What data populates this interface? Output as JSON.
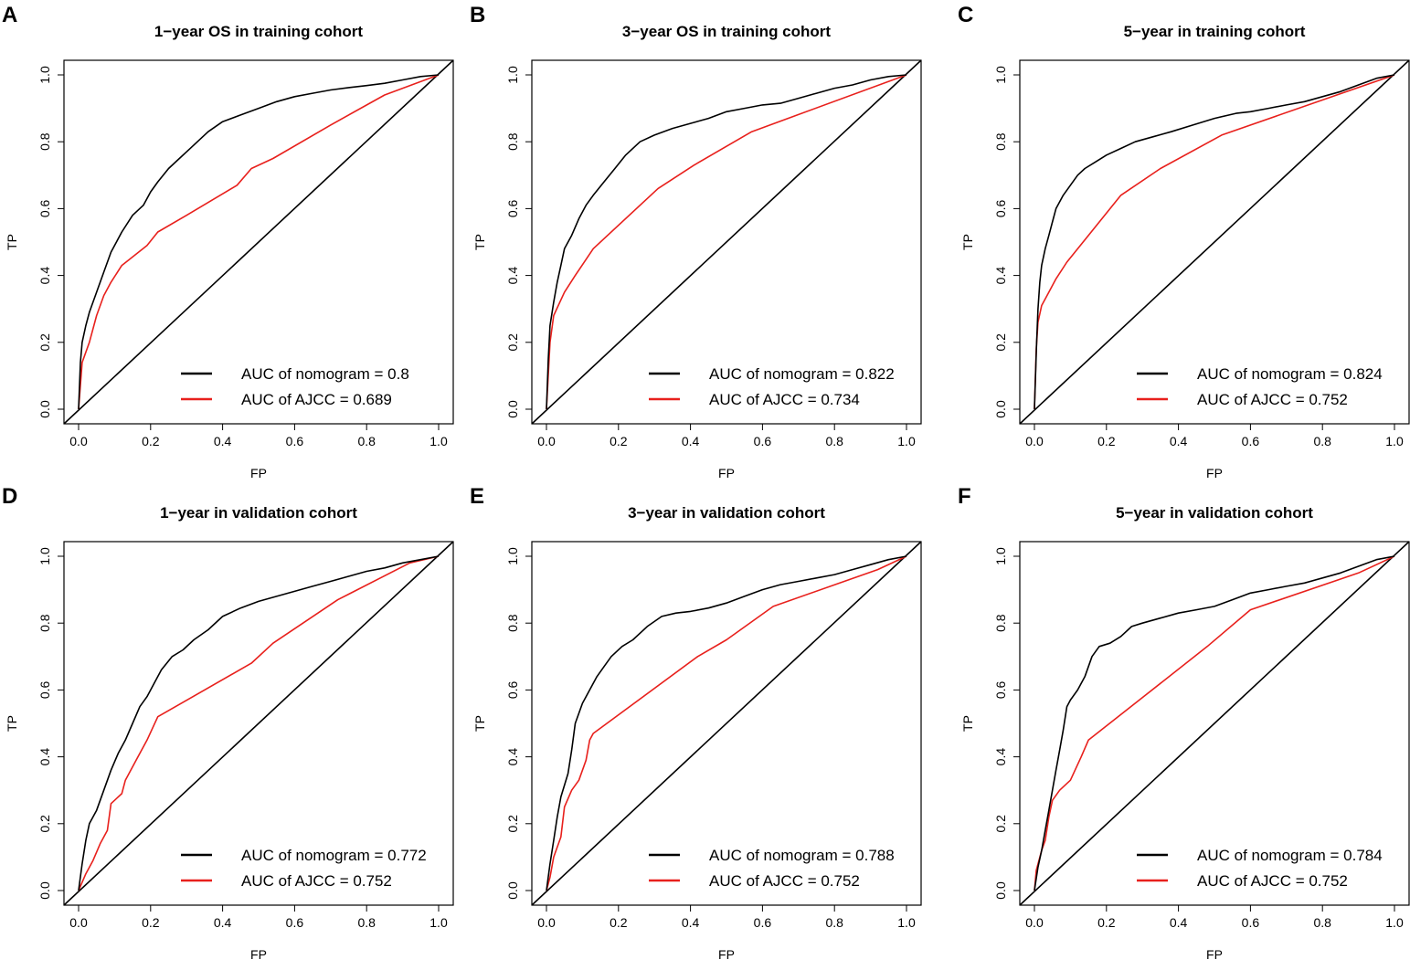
{
  "chart_data": [
    {
      "type": "line",
      "letter": "A",
      "title": "1−year OS in training cohort",
      "xlabel": "FP",
      "ylabel": "TP",
      "xlim": [
        0,
        1
      ],
      "ylim": [
        0,
        1
      ],
      "xticks": [
        "0.0",
        "0.2",
        "0.4",
        "0.6",
        "0.8",
        "1.0"
      ],
      "yticks": [
        "0.0",
        "0.2",
        "0.4",
        "0.6",
        "0.8",
        "1.0"
      ],
      "legend": [
        "AUC of nomogram = 0.8",
        "AUC of AJCC = 0.689"
      ],
      "series": [
        {
          "name": "nomogram",
          "color": "#000000",
          "x": [
            0,
            0.005,
            0.01,
            0.02,
            0.03,
            0.05,
            0.07,
            0.09,
            0.12,
            0.15,
            0.18,
            0.2,
            0.22,
            0.25,
            0.28,
            0.3,
            0.33,
            0.36,
            0.4,
            0.45,
            0.5,
            0.55,
            0.6,
            0.65,
            0.7,
            0.75,
            0.8,
            0.85,
            0.9,
            0.95,
            1
          ],
          "y": [
            0,
            0.14,
            0.2,
            0.25,
            0.29,
            0.35,
            0.41,
            0.47,
            0.53,
            0.58,
            0.61,
            0.65,
            0.68,
            0.72,
            0.75,
            0.77,
            0.8,
            0.83,
            0.86,
            0.88,
            0.9,
            0.92,
            0.935,
            0.945,
            0.955,
            0.962,
            0.968,
            0.975,
            0.985,
            0.995,
            1
          ]
        },
        {
          "name": "AJCC",
          "color": "#e8201c",
          "x": [
            0,
            0.01,
            0.03,
            0.05,
            0.07,
            0.09,
            0.12,
            0.19,
            0.22,
            0.3,
            0.44,
            0.48,
            0.54,
            0.7,
            0.85,
            1
          ],
          "y": [
            0,
            0.14,
            0.2,
            0.28,
            0.34,
            0.38,
            0.43,
            0.49,
            0.53,
            0.58,
            0.67,
            0.72,
            0.75,
            0.85,
            0.94,
            1
          ]
        }
      ]
    },
    {
      "type": "line",
      "letter": "B",
      "title": "3−year OS in training cohort",
      "xlabel": "FP",
      "ylabel": "TP",
      "xlim": [
        0,
        1
      ],
      "ylim": [
        0,
        1
      ],
      "xticks": [
        "0.0",
        "0.2",
        "0.4",
        "0.6",
        "0.8",
        "1.0"
      ],
      "yticks": [
        "0.0",
        "0.2",
        "0.4",
        "0.6",
        "0.8",
        "1.0"
      ],
      "legend": [
        "AUC of nomogram = 0.822",
        "AUC of AJCC = 0.734"
      ],
      "series": [
        {
          "name": "nomogram",
          "color": "#000000",
          "x": [
            0,
            0.005,
            0.01,
            0.02,
            0.03,
            0.04,
            0.05,
            0.07,
            0.09,
            0.11,
            0.13,
            0.16,
            0.19,
            0.22,
            0.26,
            0.3,
            0.35,
            0.4,
            0.45,
            0.5,
            0.55,
            0.6,
            0.65,
            0.7,
            0.75,
            0.8,
            0.85,
            0.9,
            0.95,
            1
          ],
          "y": [
            0,
            0.15,
            0.25,
            0.32,
            0.38,
            0.43,
            0.48,
            0.52,
            0.57,
            0.61,
            0.64,
            0.68,
            0.72,
            0.76,
            0.8,
            0.82,
            0.84,
            0.855,
            0.87,
            0.89,
            0.9,
            0.91,
            0.915,
            0.93,
            0.945,
            0.96,
            0.97,
            0.985,
            0.995,
            1
          ]
        },
        {
          "name": "AJCC",
          "color": "#e8201c",
          "x": [
            0,
            0.01,
            0.02,
            0.05,
            0.08,
            0.13,
            0.31,
            0.41,
            0.57,
            1
          ],
          "y": [
            0,
            0.2,
            0.28,
            0.35,
            0.4,
            0.48,
            0.66,
            0.73,
            0.83,
            1
          ]
        }
      ]
    },
    {
      "type": "line",
      "letter": "C",
      "title": "5−year in training cohort",
      "xlabel": "FP",
      "ylabel": "TP",
      "xlim": [
        0,
        1
      ],
      "ylim": [
        0,
        1
      ],
      "xticks": [
        "0.0",
        "0.2",
        "0.4",
        "0.6",
        "0.8",
        "1.0"
      ],
      "yticks": [
        "0.0",
        "0.2",
        "0.4",
        "0.6",
        "0.8",
        "1.0"
      ],
      "legend": [
        "AUC of nomogram = 0.824",
        "AUC of AJCC = 0.752"
      ],
      "series": [
        {
          "name": "nomogram",
          "color": "#000000",
          "x": [
            0,
            0.003,
            0.006,
            0.01,
            0.015,
            0.02,
            0.03,
            0.04,
            0.05,
            0.06,
            0.08,
            0.1,
            0.12,
            0.14,
            0.17,
            0.2,
            0.24,
            0.28,
            0.33,
            0.38,
            0.44,
            0.5,
            0.56,
            0.6,
            0.65,
            0.7,
            0.75,
            0.8,
            0.85,
            0.9,
            0.95,
            1
          ],
          "y": [
            0,
            0.1,
            0.2,
            0.3,
            0.38,
            0.43,
            0.48,
            0.52,
            0.56,
            0.6,
            0.64,
            0.67,
            0.7,
            0.72,
            0.74,
            0.76,
            0.78,
            0.8,
            0.815,
            0.83,
            0.85,
            0.87,
            0.885,
            0.89,
            0.9,
            0.91,
            0.92,
            0.935,
            0.95,
            0.97,
            0.99,
            1
          ]
        },
        {
          "name": "AJCC",
          "color": "#e8201c",
          "x": [
            0,
            0.005,
            0.01,
            0.02,
            0.04,
            0.06,
            0.09,
            0.24,
            0.35,
            0.52,
            1
          ],
          "y": [
            0,
            0.18,
            0.26,
            0.31,
            0.35,
            0.39,
            0.44,
            0.64,
            0.72,
            0.82,
            1
          ]
        }
      ]
    },
    {
      "type": "line",
      "letter": "D",
      "title": "1−year in validation cohort",
      "xlabel": "FP",
      "ylabel": "TP",
      "xlim": [
        0,
        1
      ],
      "ylim": [
        0,
        1
      ],
      "xticks": [
        "0.0",
        "0.2",
        "0.4",
        "0.6",
        "0.8",
        "1.0"
      ],
      "yticks": [
        "0.0",
        "0.2",
        "0.4",
        "0.6",
        "0.8",
        "1.0"
      ],
      "legend": [
        "AUC of nomogram = 0.772",
        "AUC of AJCC = 0.752"
      ],
      "series": [
        {
          "name": "nomogram",
          "color": "#000000",
          "x": [
            0,
            0.01,
            0.02,
            0.03,
            0.05,
            0.07,
            0.09,
            0.11,
            0.13,
            0.15,
            0.17,
            0.19,
            0.21,
            0.23,
            0.26,
            0.29,
            0.32,
            0.36,
            0.4,
            0.45,
            0.5,
            0.55,
            0.6,
            0.65,
            0.7,
            0.75,
            0.8,
            0.85,
            0.9,
            0.95,
            1
          ],
          "y": [
            0,
            0.08,
            0.15,
            0.2,
            0.24,
            0.3,
            0.36,
            0.41,
            0.45,
            0.5,
            0.55,
            0.58,
            0.62,
            0.66,
            0.7,
            0.72,
            0.75,
            0.78,
            0.82,
            0.845,
            0.865,
            0.88,
            0.895,
            0.91,
            0.925,
            0.94,
            0.955,
            0.965,
            0.98,
            0.99,
            1
          ]
        },
        {
          "name": "AJCC",
          "color": "#e8201c",
          "x": [
            0,
            0.02,
            0.04,
            0.06,
            0.08,
            0.09,
            0.12,
            0.13,
            0.16,
            0.19,
            0.22,
            0.48,
            0.54,
            0.72,
            0.92,
            1
          ],
          "y": [
            0,
            0.05,
            0.09,
            0.14,
            0.18,
            0.26,
            0.29,
            0.33,
            0.39,
            0.45,
            0.52,
            0.68,
            0.74,
            0.87,
            0.98,
            1
          ]
        }
      ]
    },
    {
      "type": "line",
      "letter": "E",
      "title": "3−year in validation cohort",
      "xlabel": "FP",
      "ylabel": "TP",
      "xlim": [
        0,
        1
      ],
      "ylim": [
        0,
        1
      ],
      "xticks": [
        "0.0",
        "0.2",
        "0.4",
        "0.6",
        "0.8",
        "1.0"
      ],
      "yticks": [
        "0.0",
        "0.2",
        "0.4",
        "0.6",
        "0.8",
        "1.0"
      ],
      "legend": [
        "AUC of nomogram = 0.788",
        "AUC of AJCC = 0.752"
      ],
      "series": [
        {
          "name": "nomogram",
          "color": "#000000",
          "x": [
            0,
            0.01,
            0.02,
            0.03,
            0.04,
            0.06,
            0.07,
            0.08,
            0.1,
            0.12,
            0.14,
            0.16,
            0.18,
            0.21,
            0.24,
            0.28,
            0.32,
            0.36,
            0.4,
            0.45,
            0.5,
            0.55,
            0.6,
            0.65,
            0.7,
            0.75,
            0.8,
            0.85,
            0.9,
            0.95,
            1
          ],
          "y": [
            0,
            0.08,
            0.15,
            0.22,
            0.28,
            0.35,
            0.42,
            0.5,
            0.56,
            0.6,
            0.64,
            0.67,
            0.7,
            0.73,
            0.75,
            0.79,
            0.82,
            0.83,
            0.835,
            0.845,
            0.86,
            0.88,
            0.9,
            0.915,
            0.925,
            0.935,
            0.945,
            0.96,
            0.975,
            0.99,
            1
          ]
        },
        {
          "name": "AJCC",
          "color": "#e8201c",
          "x": [
            0,
            0.01,
            0.02,
            0.04,
            0.05,
            0.07,
            0.09,
            0.11,
            0.12,
            0.13,
            0.42,
            0.5,
            0.63,
            0.92,
            1
          ],
          "y": [
            0,
            0.04,
            0.1,
            0.16,
            0.25,
            0.3,
            0.33,
            0.39,
            0.45,
            0.47,
            0.7,
            0.75,
            0.85,
            0.96,
            1
          ]
        }
      ]
    },
    {
      "type": "line",
      "letter": "F",
      "title": "5−year in validation cohort",
      "xlabel": "FP",
      "ylabel": "TP",
      "xlim": [
        0,
        1
      ],
      "ylim": [
        0,
        1
      ],
      "xticks": [
        "0.0",
        "0.2",
        "0.4",
        "0.6",
        "0.8",
        "1.0"
      ],
      "yticks": [
        "0.0",
        "0.2",
        "0.4",
        "0.6",
        "0.8",
        "1.0"
      ],
      "legend": [
        "AUC of nomogram = 0.784",
        "AUC of AJCC = 0.752"
      ],
      "series": [
        {
          "name": "nomogram",
          "color": "#000000",
          "x": [
            0,
            0.01,
            0.02,
            0.03,
            0.04,
            0.05,
            0.06,
            0.07,
            0.08,
            0.09,
            0.1,
            0.12,
            0.14,
            0.16,
            0.18,
            0.21,
            0.24,
            0.27,
            0.3,
            0.35,
            0.4,
            0.45,
            0.5,
            0.55,
            0.6,
            0.65,
            0.7,
            0.75,
            0.8,
            0.85,
            0.9,
            0.95,
            1
          ],
          "y": [
            0,
            0.07,
            0.12,
            0.18,
            0.24,
            0.3,
            0.36,
            0.42,
            0.48,
            0.55,
            0.57,
            0.6,
            0.64,
            0.7,
            0.73,
            0.74,
            0.76,
            0.79,
            0.8,
            0.815,
            0.83,
            0.84,
            0.85,
            0.87,
            0.89,
            0.9,
            0.91,
            0.92,
            0.935,
            0.95,
            0.97,
            0.99,
            1
          ]
        },
        {
          "name": "AJCC",
          "color": "#e8201c",
          "x": [
            0,
            0.005,
            0.02,
            0.03,
            0.04,
            0.05,
            0.07,
            0.1,
            0.13,
            0.15,
            0.48,
            0.6,
            0.9,
            1
          ],
          "y": [
            0,
            0.06,
            0.12,
            0.15,
            0.22,
            0.27,
            0.3,
            0.33,
            0.4,
            0.45,
            0.73,
            0.84,
            0.95,
            1
          ]
        }
      ]
    }
  ]
}
